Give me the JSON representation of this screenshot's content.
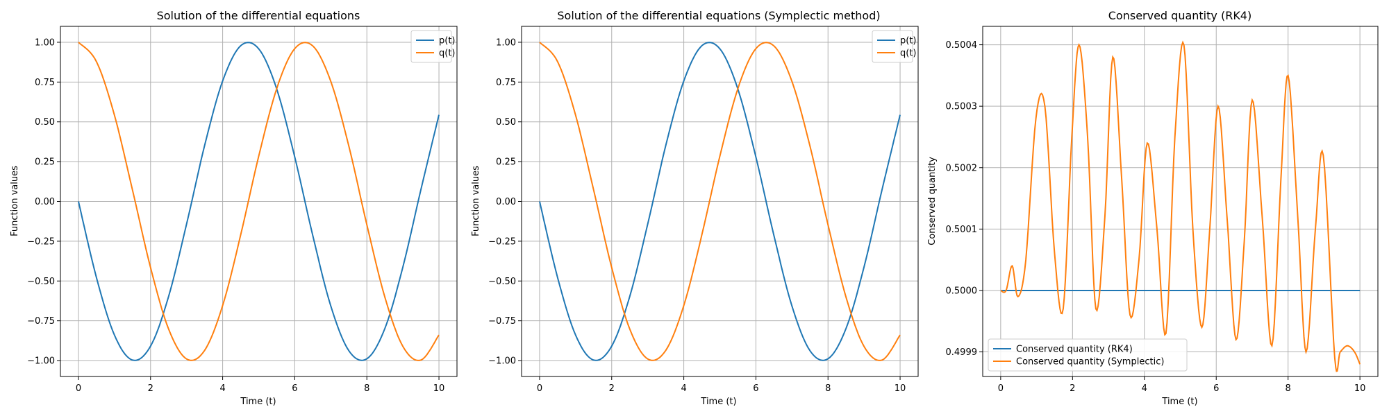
{
  "colors": {
    "series1": "#1f77b4",
    "series2": "#ff7f0e",
    "grid": "#b0b0b0",
    "frame": "#000000"
  },
  "chart_data": [
    {
      "type": "line",
      "title": "Solution of the differential equations",
      "xlabel": "Time (t)",
      "ylabel": "Function values",
      "xlim": [
        -0.5,
        10.5
      ],
      "ylim": [
        -1.1,
        1.1
      ],
      "xticks": [
        0,
        2,
        4,
        6,
        8,
        10
      ],
      "xtick_labels": [
        "0",
        "2",
        "4",
        "6",
        "8",
        "10"
      ],
      "yticks": [
        -1.0,
        -0.75,
        -0.5,
        -0.25,
        0.0,
        0.25,
        0.5,
        0.75,
        1.0
      ],
      "ytick_labels": [
        "−1.00",
        "−0.75",
        "−0.50",
        "−0.25",
        "0.00",
        "0.25",
        "0.50",
        "0.75",
        "1.00"
      ],
      "grid": true,
      "legend": "top-right",
      "x": [
        0,
        0.5,
        1,
        1.5,
        2,
        2.5,
        3,
        3.5,
        4,
        4.5,
        5,
        5.5,
        6,
        6.5,
        7,
        7.5,
        8,
        8.5,
        9,
        9.5,
        10
      ],
      "series": [
        {
          "name": "p(t)",
          "color": "#1f77b4",
          "values": [
            0.0,
            -0.479,
            -0.841,
            -0.997,
            -0.909,
            -0.598,
            -0.141,
            0.351,
            0.757,
            0.978,
            0.959,
            0.706,
            0.279,
            -0.215,
            -0.657,
            -0.938,
            -0.989,
            -0.798,
            -0.412,
            0.075,
            0.544
          ]
        },
        {
          "name": "q(t)",
          "color": "#ff7f0e",
          "values": [
            1.0,
            0.878,
            0.54,
            0.071,
            -0.416,
            -0.801,
            -0.99,
            -0.936,
            -0.654,
            -0.211,
            0.284,
            0.709,
            0.96,
            0.977,
            0.754,
            0.347,
            -0.146,
            -0.602,
            -0.911,
            -0.997,
            -0.839
          ]
        }
      ]
    },
    {
      "type": "line",
      "title": "Solution of the differential equations (Symplectic method)",
      "xlabel": "Time (t)",
      "ylabel": "Function values",
      "xlim": [
        -0.5,
        10.5
      ],
      "ylim": [
        -1.1,
        1.1
      ],
      "xticks": [
        0,
        2,
        4,
        6,
        8,
        10
      ],
      "xtick_labels": [
        "0",
        "2",
        "4",
        "6",
        "8",
        "10"
      ],
      "yticks": [
        -1.0,
        -0.75,
        -0.5,
        -0.25,
        0.0,
        0.25,
        0.5,
        0.75,
        1.0
      ],
      "ytick_labels": [
        "−1.00",
        "−0.75",
        "−0.50",
        "−0.25",
        "0.00",
        "0.25",
        "0.50",
        "0.75",
        "1.00"
      ],
      "grid": true,
      "legend": "top-right",
      "x": [
        0,
        0.5,
        1,
        1.5,
        2,
        2.5,
        3,
        3.5,
        4,
        4.5,
        5,
        5.5,
        6,
        6.5,
        7,
        7.5,
        8,
        8.5,
        9,
        9.5,
        10
      ],
      "series": [
        {
          "name": "p(t)",
          "color": "#1f77b4",
          "values": [
            0.0,
            -0.479,
            -0.841,
            -0.997,
            -0.909,
            -0.598,
            -0.141,
            0.351,
            0.757,
            0.978,
            0.959,
            0.706,
            0.279,
            -0.215,
            -0.657,
            -0.938,
            -0.989,
            -0.798,
            -0.412,
            0.075,
            0.544
          ]
        },
        {
          "name": "q(t)",
          "color": "#ff7f0e",
          "values": [
            1.0,
            0.878,
            0.54,
            0.071,
            -0.416,
            -0.801,
            -0.99,
            -0.936,
            -0.654,
            -0.211,
            0.284,
            0.709,
            0.96,
            0.977,
            0.754,
            0.347,
            -0.146,
            -0.602,
            -0.911,
            -0.997,
            -0.839
          ]
        }
      ]
    },
    {
      "type": "line",
      "title": "Conserved quantity (RK4)",
      "xlabel": "Time (t)",
      "ylabel": "Conserved quantity",
      "xlim": [
        -0.5,
        10.5
      ],
      "ylim": [
        0.49986,
        0.50043
      ],
      "xticks": [
        0,
        2,
        4,
        6,
        8,
        10
      ],
      "xtick_labels": [
        "0",
        "2",
        "4",
        "6",
        "8",
        "10"
      ],
      "yticks": [
        0.4999,
        0.5,
        0.5001,
        0.5002,
        0.5003,
        0.5004
      ],
      "ytick_labels": [
        "0.4999",
        "0.5000",
        "0.5001",
        "0.5002",
        "0.5003",
        "0.5004"
      ],
      "grid": true,
      "legend": "bottom-left",
      "series": [
        {
          "name": "Conserved quantity (RK4)",
          "color": "#1f77b4",
          "x": [
            0,
            10
          ],
          "values": [
            0.5,
            0.5
          ]
        },
        {
          "name": "Conserved quantity (Symplectic)",
          "color": "#ff7f0e",
          "x": [
            0,
            0.15,
            0.32,
            0.48,
            0.7,
            0.98,
            1.23,
            1.5,
            1.74,
            1.98,
            2.18,
            2.42,
            2.65,
            2.9,
            3.12,
            3.37,
            3.6,
            3.85,
            4.08,
            4.35,
            4.6,
            4.85,
            5.1,
            5.35,
            5.6,
            5.82,
            6.05,
            6.3,
            6.55,
            6.78,
            7.0,
            7.28,
            7.55,
            7.8,
            8.0,
            8.27,
            8.5,
            8.76,
            8.98,
            9.3,
            9.45,
            9.65,
            9.85,
            10.0
          ],
          "values": [
            0.5,
            0.5,
            0.50004,
            0.49999,
            0.50005,
            0.50028,
            0.5003,
            0.50006,
            0.49997,
            0.50025,
            0.5004,
            0.50025,
            0.49997,
            0.50012,
            0.50038,
            0.50018,
            0.49996,
            0.50005,
            0.50024,
            0.5001,
            0.49993,
            0.50025,
            0.5004,
            0.5001,
            0.49994,
            0.5001,
            0.5003,
            0.50012,
            0.49992,
            0.50008,
            0.50031,
            0.50012,
            0.49991,
            0.50018,
            0.50035,
            0.50012,
            0.4999,
            0.5001,
            0.50022,
            0.49989,
            0.4999,
            0.49991,
            0.4999,
            0.49988
          ]
        }
      ]
    }
  ]
}
